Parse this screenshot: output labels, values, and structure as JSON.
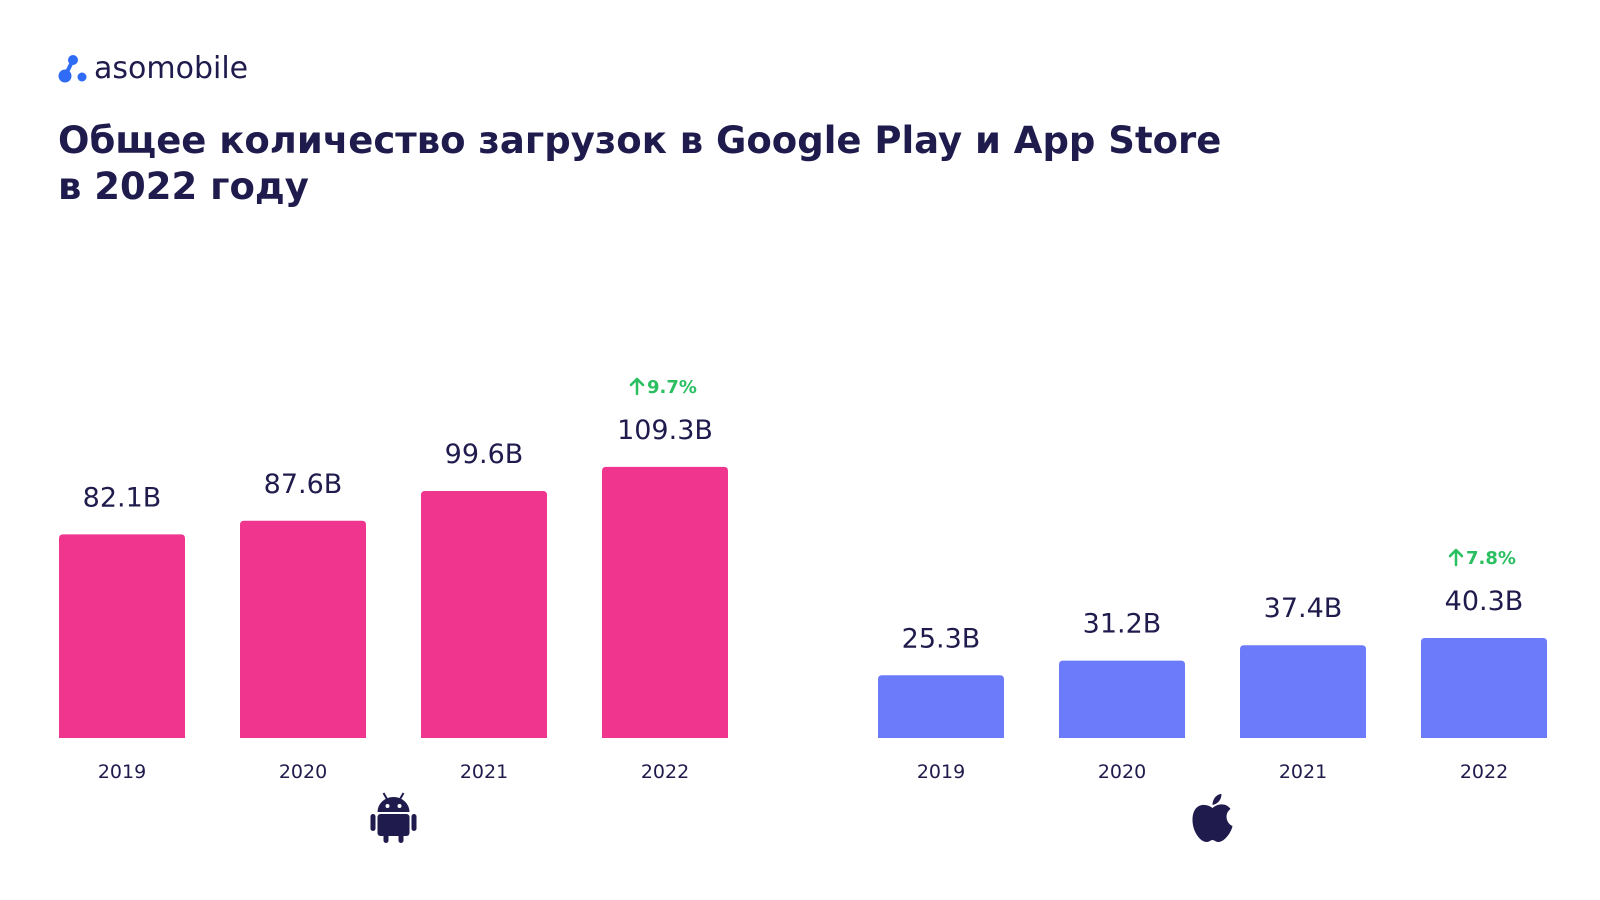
{
  "brand": {
    "name": "asomobile",
    "colors": {
      "dark": "#1f1b4d",
      "accent": "#2f6bf5"
    }
  },
  "title": {
    "line1": "Общее количество загрузок в Google Play и App Store",
    "line2": "в 2022 году"
  },
  "chart_data": [
    {
      "type": "bar",
      "platform_icon": "android-icon",
      "color": "#f0358f",
      "categories": [
        "2019",
        "2020",
        "2021",
        "2022"
      ],
      "values": [
        82.1,
        87.6,
        99.6,
        109.3
      ],
      "value_labels": [
        "82.1B",
        "87.6B",
        "99.6B",
        "109.3B"
      ],
      "growth_label": "9.7%",
      "ylim": [
        0,
        110
      ]
    },
    {
      "type": "bar",
      "platform_icon": "apple-icon",
      "color": "#6c7bfa",
      "categories": [
        "2019",
        "2020",
        "2021",
        "2022"
      ],
      "values": [
        25.3,
        31.2,
        37.4,
        40.3
      ],
      "value_labels": [
        "25.3B",
        "31.2B",
        "37.4B",
        "40.3B"
      ],
      "growth_label": "7.8%",
      "ylim": [
        0,
        110
      ]
    }
  ],
  "growth_color": "#2bbf61"
}
